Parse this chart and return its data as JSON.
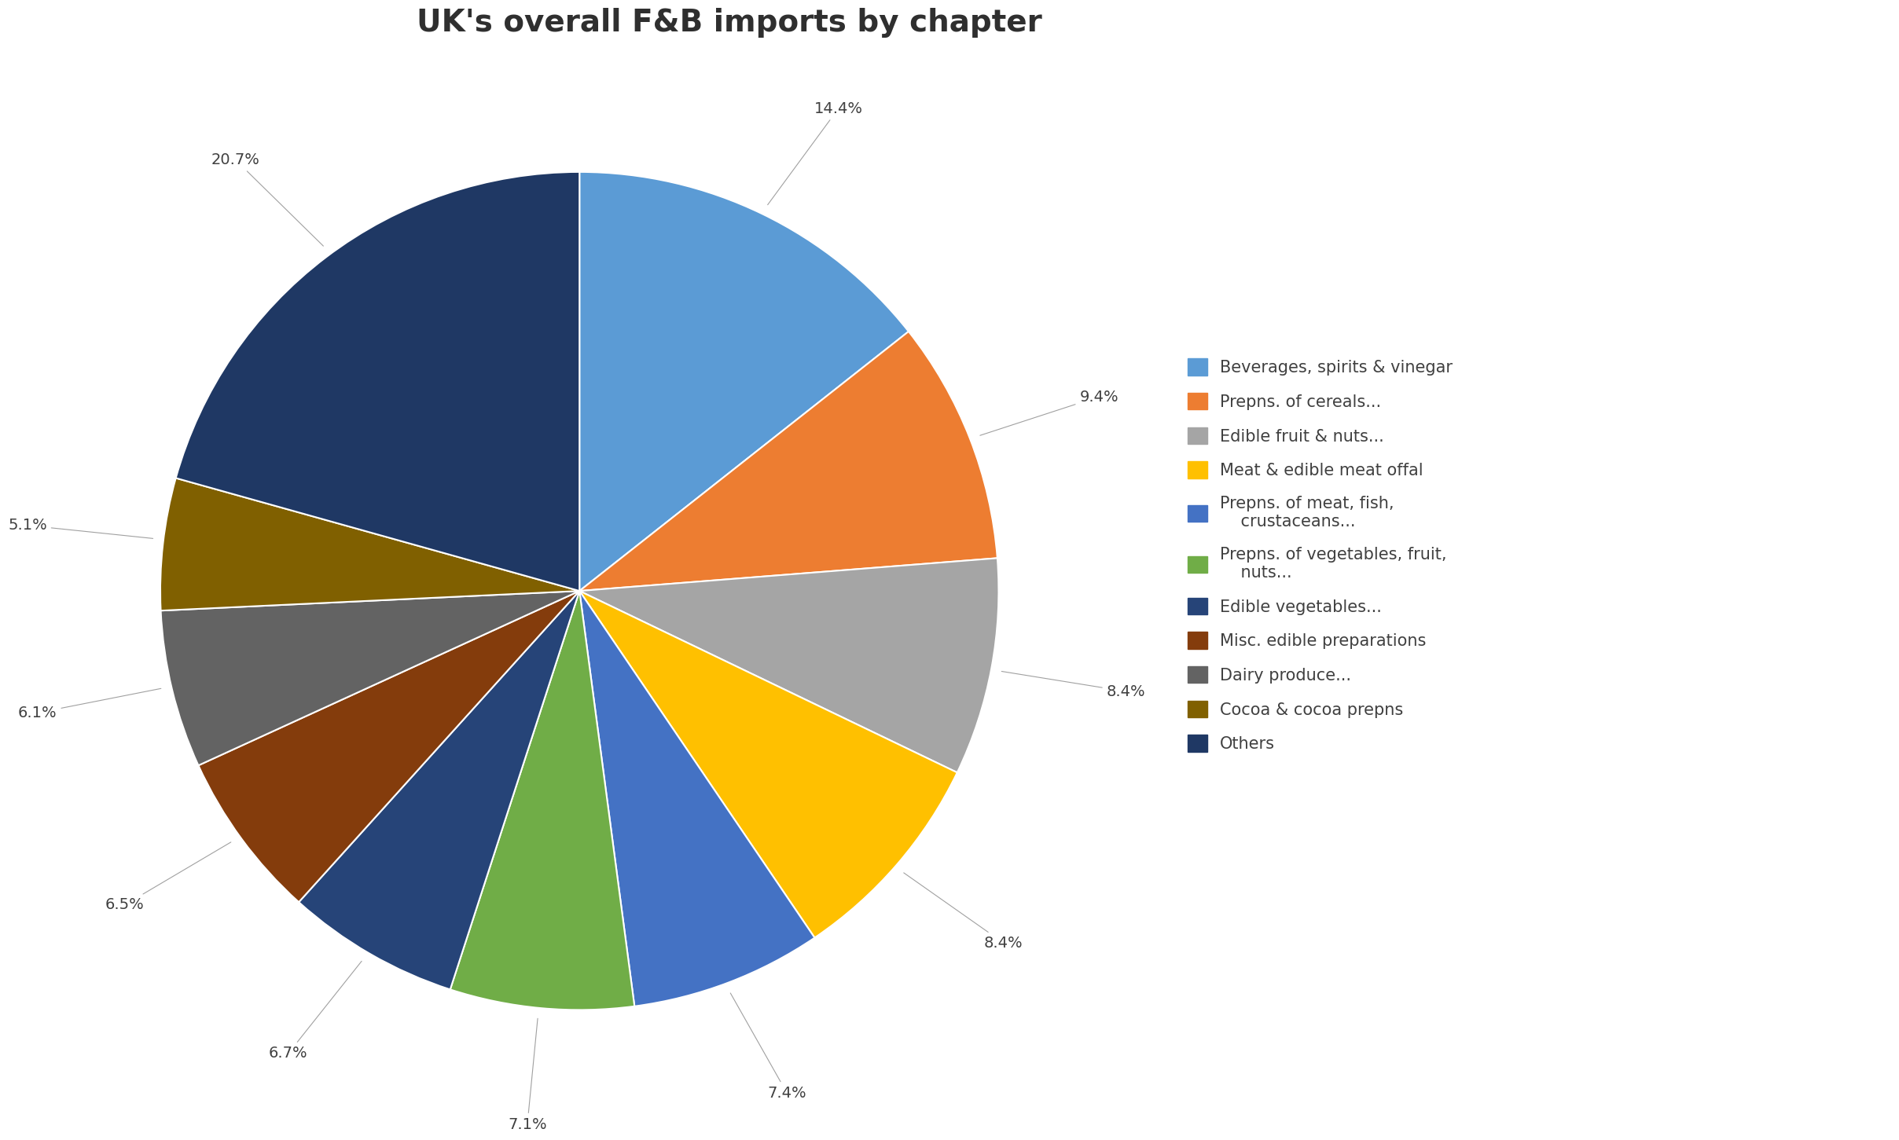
{
  "title": "UK's overall F&B imports by chapter",
  "values": [
    14.4,
    9.4,
    8.4,
    8.4,
    7.4,
    7.1,
    6.7,
    6.5,
    6.1,
    5.1,
    20.7
  ],
  "colors": [
    "#5B9BD5",
    "#ED7D31",
    "#A5A5A5",
    "#FFC000",
    "#4472C4",
    "#70AD47",
    "#264478",
    "#843C0C",
    "#636363",
    "#806000",
    "#1F3864"
  ],
  "pct_labels": [
    "14.4%",
    "9.4%",
    "8.4%",
    "8.4%",
    "7.4%",
    "7.1%",
    "6.7%",
    "6.5%",
    "6.1%",
    "5.1%",
    "20.7%"
  ],
  "legend_labels": [
    "Beverages, spirits & vinegar",
    "Prepns. of cereals...",
    "Edible fruit & nuts...",
    "Meat & edible meat offal",
    "Prepns. of meat, fish,\n    crustaceans...",
    "Prepns. of vegetables, fruit,\n    nuts...",
    "Edible vegetables...",
    "Misc. edible preparations",
    "Dairy produce...",
    "Cocoa & cocoa prepns",
    "Others"
  ],
  "title_fontsize": 28,
  "pct_fontsize": 14,
  "legend_fontsize": 15,
  "background_color": "#FFFFFF",
  "startangle": 90
}
